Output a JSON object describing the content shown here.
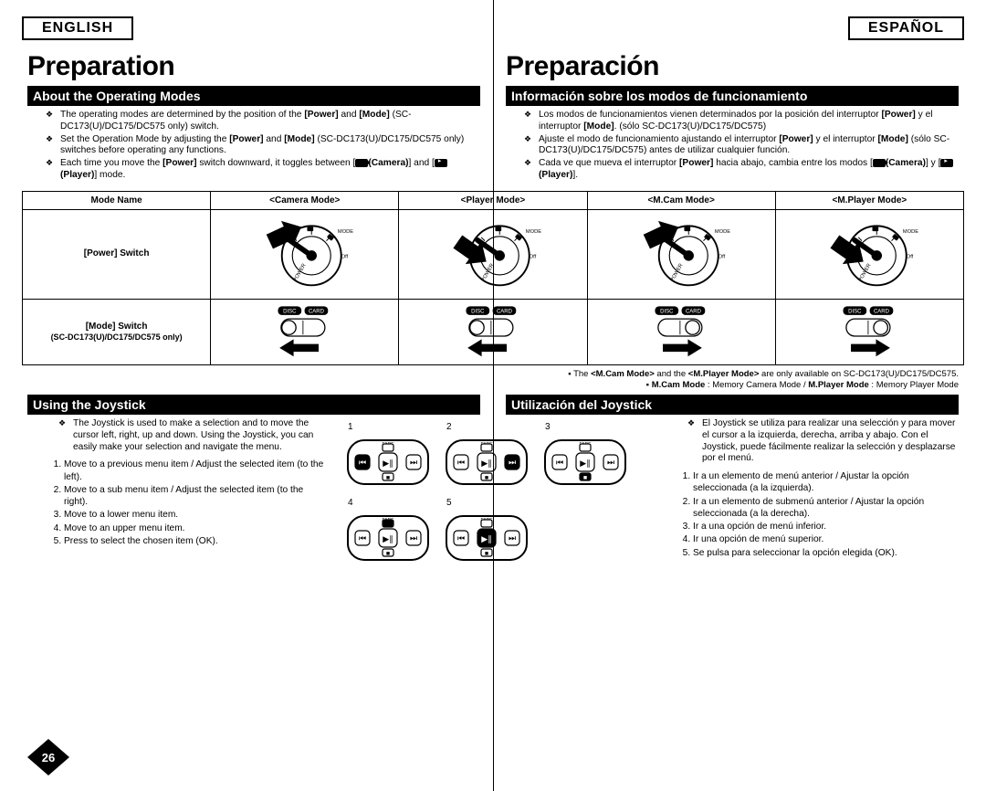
{
  "lang": {
    "en": "ENGLISH",
    "es": "ESPAÑOL"
  },
  "title": {
    "en": "Preparation",
    "es": "Preparación"
  },
  "section1": {
    "bar_en": "About the Operating Modes",
    "bar_es": "Información sobre los modos de funcionamiento",
    "bullets_en": [
      "The operating modes are determined by the position of the <b>[Power]</b> and <b>[Mode]</b> (SC-DC173(U)/DC175/DC575 only) switch.",
      "Set the Operation Mode by adjusting the <b>[Power]</b> and <b>[Mode]</b> (SC-DC173(U)/DC175/DC575 only) switches before operating any functions.",
      "Each time you move the <b>[Power]</b> switch downward, it toggles between [<span class=\"camera-icon\"></span><b>(Camera)</b>] and [<span class=\"player-icon\"></span><b>(Player)</b>] mode."
    ],
    "bullets_es": [
      "Los modos de funcionamientos vienen determinados por la posición del interruptor <b>[Power]</b> y el interruptor <b>[Mode]</b>. (sólo SC-DC173(U)/DC175/DC575)",
      "Ajuste el modo de funcionamiento ajustando el interruptor <b>[Power]</b> y el interruptor <b>[Mode]</b> (sólo SC-DC173(U)/DC175/DC575) antes de utilizar cualquier función.",
      "Cada ve que mueva el interruptor <b>[Power]</b> hacia abajo, cambia entre los modos [<span class=\"camera-icon\"></span><b>(Camera)</b>] y [<span class=\"player-icon\"></span><b>(Player)</b>]."
    ]
  },
  "table": {
    "col0": {
      "head": "Mode Name",
      "r1": "[Power] Switch",
      "r2a": "[Mode] Switch",
      "r2b": "(SC-DC173(U)/DC175/DC575 only)"
    },
    "cols": [
      {
        "head": "<Camera Mode>",
        "dial": "camera",
        "switch": "disc"
      },
      {
        "head": "<Player Mode>",
        "dial": "player",
        "switch": "disc"
      },
      {
        "head": "<M.Cam Mode>",
        "dial": "camera",
        "switch": "card"
      },
      {
        "head": "<M.Player Mode>",
        "dial": "player",
        "switch": "card"
      }
    ]
  },
  "notes": {
    "line1_pre": "The ",
    "line1_b1": "<M.Cam Mode>",
    "line1_mid": " and the ",
    "line1_b2": "<M.Player Mode>",
    "line1_post": " are only available on SC-DC173(U)/DC175/DC575.",
    "line2_b1": "M.Cam Mode",
    "line2_t1": " : Memory Camera Mode / ",
    "line2_b2": "M.Player Mode",
    "line2_t2": " : Memory Player Mode"
  },
  "section2": {
    "bar_en": "Using the Joystick",
    "bar_es": "Utilización del Joystick",
    "intro_en": "The Joystick is used to make a selection and to move the cursor left, right, up and down. Using the Joystick, you can easily make your selection and navigate the menu.",
    "intro_es": "El Joystick se utiliza para realizar una selección y para mover el cursor a la izquierda, derecha, arriba y abajo. Con el Joystick, puede fácilmente realizar la selección y desplazarse por el menú.",
    "steps_en": [
      "Move to a previous menu item / Adjust the selected item (to the left).",
      "Move to a sub menu item / Adjust the selected item (to the right).",
      "Move to a lower menu item.",
      "Move to an upper menu item.",
      "Press to select the chosen item (OK)."
    ],
    "steps_es": [
      "Ir a un elemento de menú anterior / Ajustar la opción seleccionada (a la izquierda).",
      "Ir a un elemento de submenú anterior / Ajustar la opción seleccionada (a la derecha).",
      "Ir a una opción de menú inferior.",
      "Ir una opción de menú superior.",
      "Se pulsa para seleccionar la opción elegida (OK)."
    ]
  },
  "joyfigs": [
    {
      "n": "1",
      "hl": "left"
    },
    {
      "n": "2",
      "hl": "right"
    },
    {
      "n": "3",
      "hl": "down"
    },
    {
      "n": "4",
      "hl": "up"
    },
    {
      "n": "5",
      "hl": "center"
    }
  ],
  "page_number": "26",
  "colors": {
    "black": "#000000",
    "white": "#ffffff",
    "gray": "#888888"
  }
}
